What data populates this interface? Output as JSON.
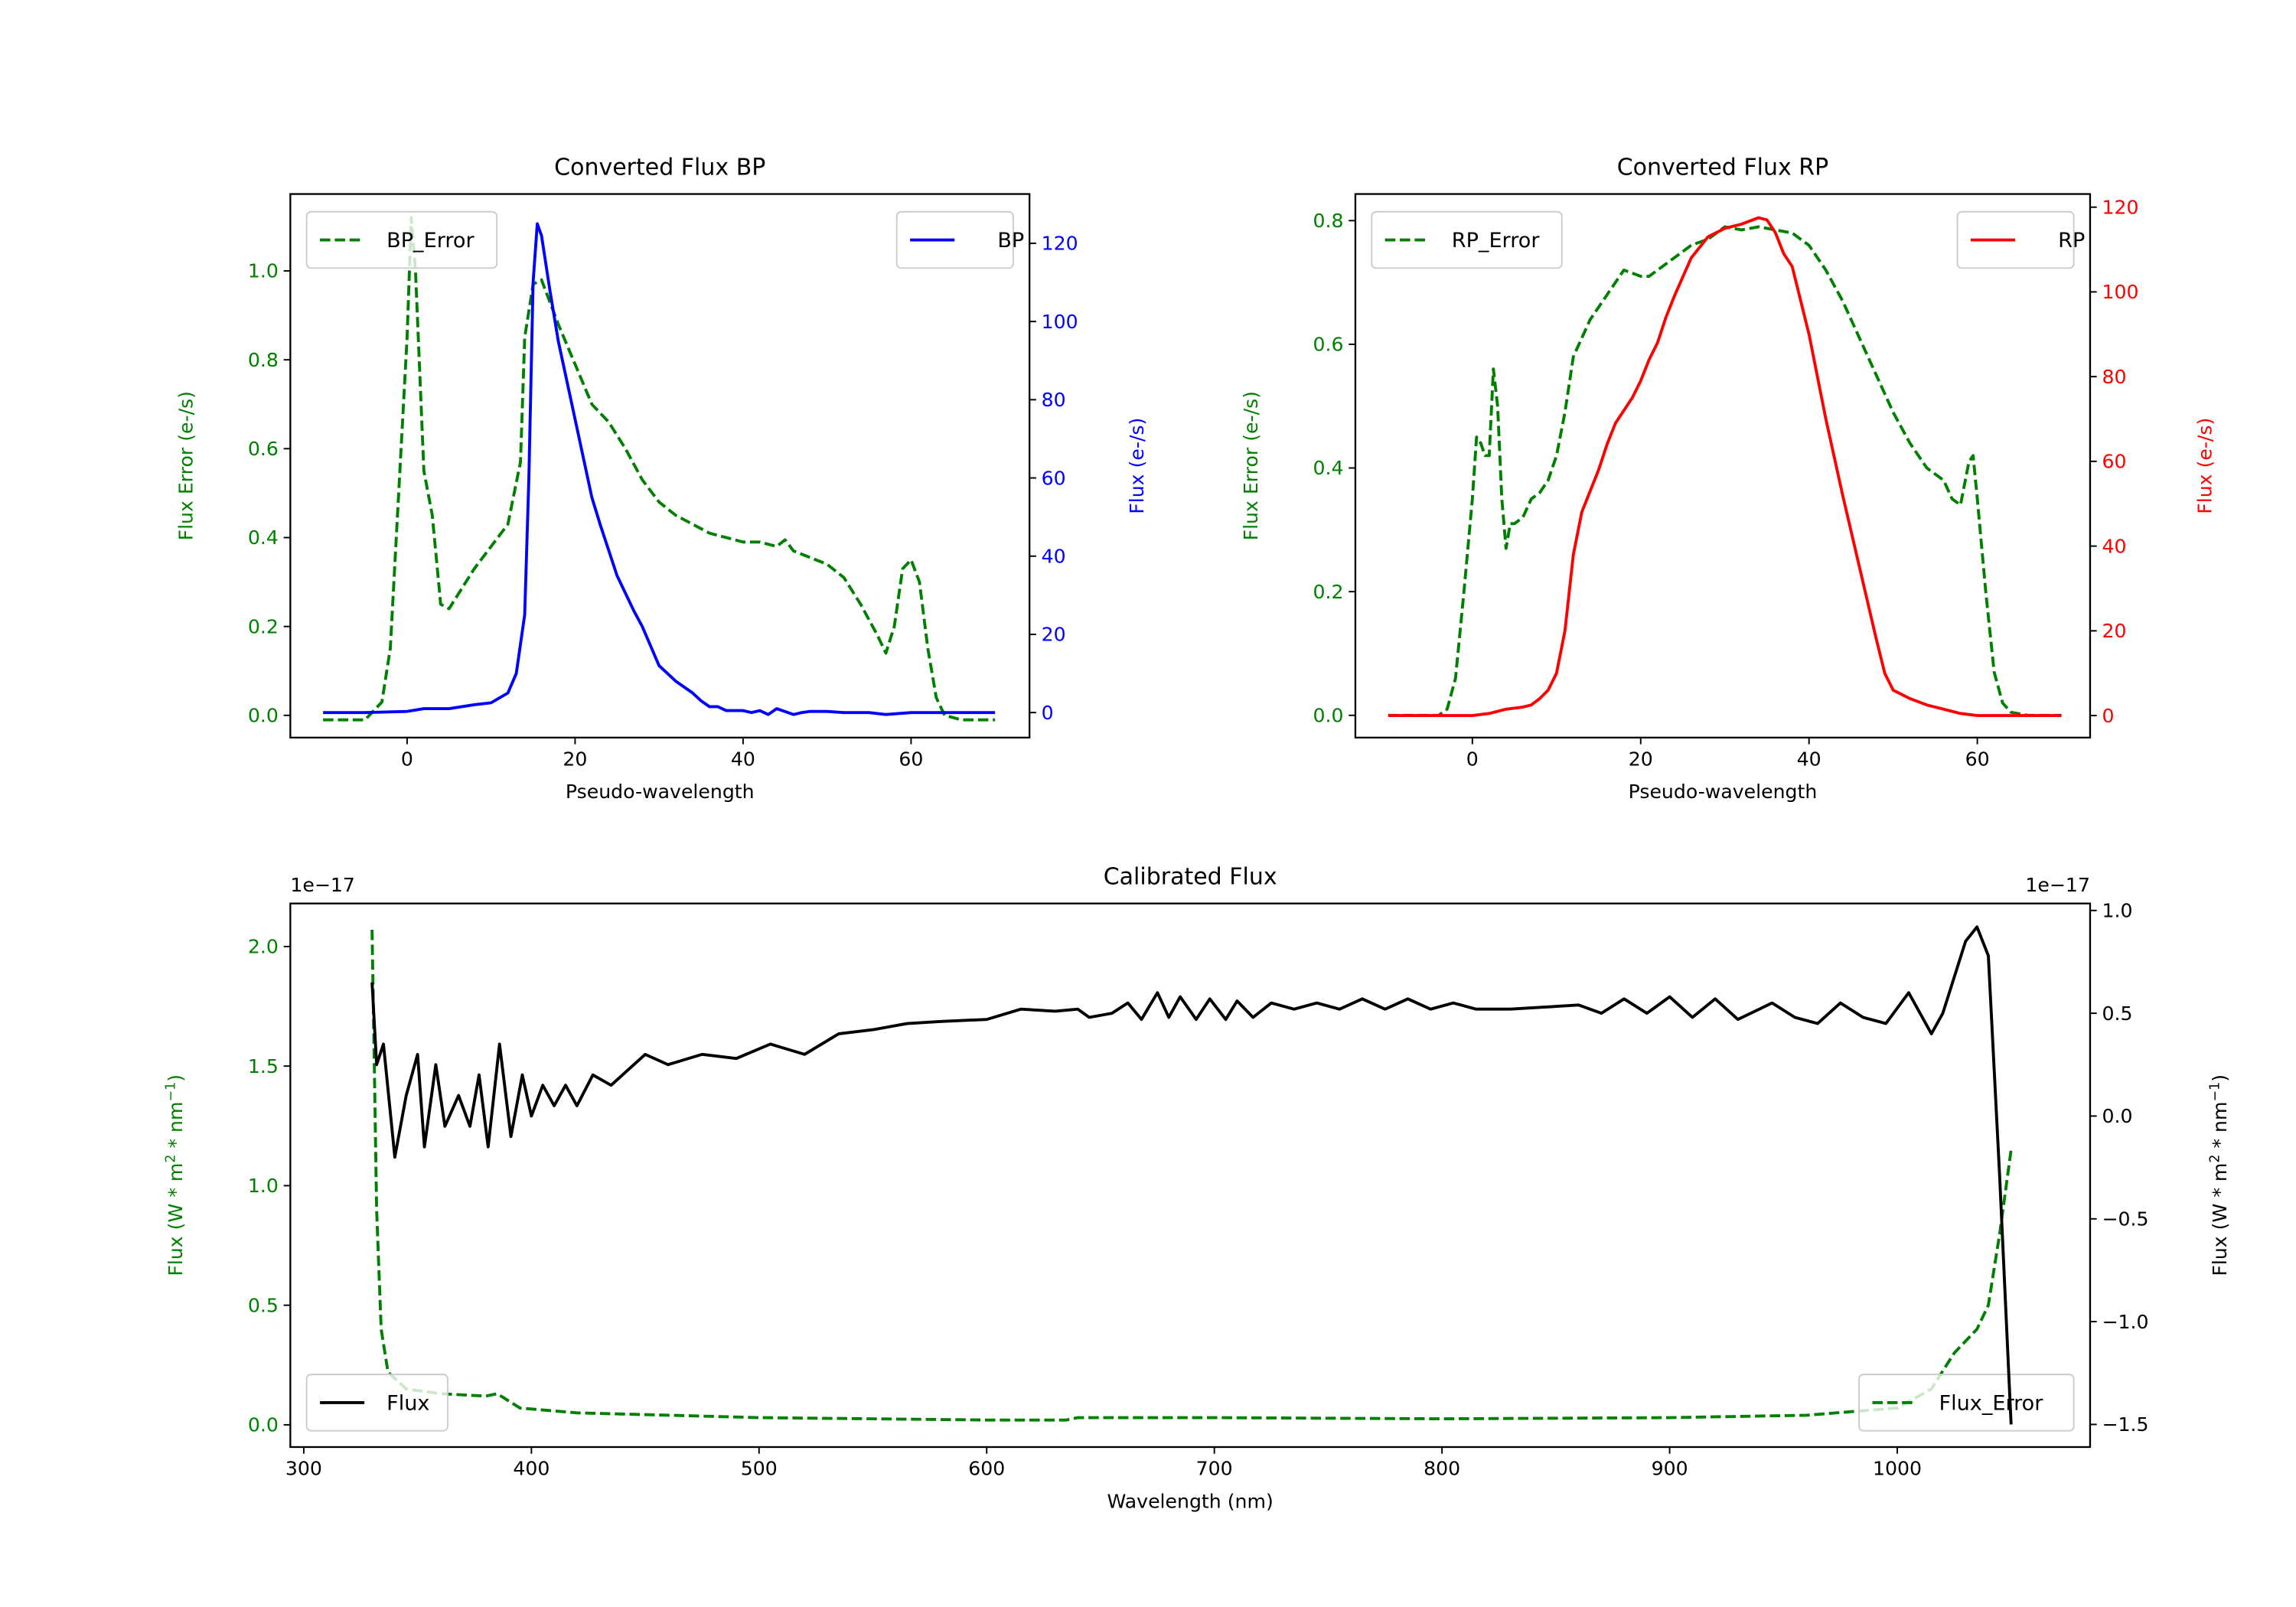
{
  "chart_data": [
    {
      "type": "line",
      "title": "Converted Flux BP",
      "xlabel": "Pseudo-wavelength",
      "ylabel_left": [
        "Flux Error (e-/s)"
      ],
      "ylabel_right": [
        "Flux (e-/s)"
      ],
      "left_color": "#008000",
      "right_color": "#0000ff",
      "xlim": [
        -13.9,
        74.1
      ],
      "ylim_left": [
        -0.05,
        1.173
      ],
      "ylim_right": [
        -6.4,
        132.6
      ],
      "xticks": [
        {
          "v": 0,
          "label": "0"
        },
        {
          "v": 20,
          "label": "20"
        },
        {
          "v": 40,
          "label": "40"
        },
        {
          "v": 60,
          "label": "60"
        }
      ],
      "yticks_left": [
        {
          "v": 0,
          "label": "0.0"
        },
        {
          "v": 0.2,
          "label": "0.2"
        },
        {
          "v": 0.4,
          "label": "0.4"
        },
        {
          "v": 0.6,
          "label": "0.6"
        },
        {
          "v": 0.8,
          "label": "0.8"
        },
        {
          "v": 1.0,
          "label": "1.0"
        }
      ],
      "yticks_right": [
        {
          "v": 0,
          "label": "0"
        },
        {
          "v": 20,
          "label": "20"
        },
        {
          "v": 40,
          "label": "40"
        },
        {
          "v": 60,
          "label": "60"
        },
        {
          "v": 80,
          "label": "80"
        },
        {
          "v": 100,
          "label": "100"
        },
        {
          "v": 120,
          "label": "120"
        }
      ],
      "series_left": {
        "name": "BP_Error",
        "color": "#008000",
        "dashed": true,
        "legend": "upper-left",
        "x": [
          -10,
          -5,
          -3,
          -2,
          -1,
          0,
          0.5,
          1,
          2,
          3,
          4,
          5,
          6,
          8,
          10,
          12,
          13.5,
          14,
          15,
          16,
          17,
          18,
          20,
          22,
          24,
          26,
          28,
          30,
          32,
          34,
          36,
          38,
          40,
          42,
          44,
          45,
          46,
          48,
          50,
          52,
          54,
          56,
          57,
          58,
          59,
          60,
          61,
          62,
          63,
          64,
          66,
          70
        ],
        "y": [
          -0.01,
          -0.01,
          0.03,
          0.15,
          0.5,
          0.85,
          1.12,
          1.0,
          0.55,
          0.45,
          0.25,
          0.24,
          0.27,
          0.33,
          0.38,
          0.43,
          0.57,
          0.85,
          0.97,
          0.98,
          0.93,
          0.88,
          0.79,
          0.7,
          0.66,
          0.6,
          0.53,
          0.48,
          0.45,
          0.43,
          0.41,
          0.4,
          0.39,
          0.39,
          0.38,
          0.395,
          0.37,
          0.355,
          0.34,
          0.31,
          0.25,
          0.18,
          0.14,
          0.2,
          0.33,
          0.35,
          0.3,
          0.15,
          0.04,
          0,
          -0.01,
          -0.01
        ]
      },
      "series_right": {
        "name": "BP",
        "color": "#0000ff",
        "dashed": false,
        "legend": "upper-right",
        "x": [
          -10,
          -5,
          0,
          2,
          5,
          8,
          10,
          12,
          13,
          14,
          14.5,
          15,
          15.5,
          16,
          17,
          18,
          20,
          22,
          23,
          25,
          27,
          28,
          29,
          30,
          32,
          34,
          35,
          36,
          37,
          38,
          40,
          41,
          42,
          43,
          44,
          46,
          47,
          48,
          50,
          52,
          55,
          57,
          60,
          65,
          70
        ],
        "y": [
          0,
          0,
          0.3,
          1,
          1,
          2,
          2.5,
          5,
          10,
          25,
          60,
          110,
          125,
          122,
          108,
          95,
          75,
          55,
          48,
          35,
          26,
          22,
          17,
          12,
          8,
          5,
          3,
          1.5,
          1.5,
          0.5,
          0.5,
          0,
          0.5,
          -0.5,
          1,
          -0.5,
          0,
          0.3,
          0.3,
          0,
          0,
          -0.5,
          0,
          0,
          0
        ]
      }
    },
    {
      "type": "line",
      "title": "Converted Flux RP",
      "xlabel": "Pseudo-wavelength",
      "ylabel_left": [
        "Flux Error (e-/s)"
      ],
      "ylabel_right": [
        "Flux (e-/s)"
      ],
      "left_color": "#008000",
      "right_color": "#ff0000",
      "xlim": [
        -13.9,
        73.4
      ],
      "ylim_left": [
        -0.036,
        0.843
      ],
      "ylim_right": [
        -5.2,
        123.1
      ],
      "xticks": [
        {
          "v": 0,
          "label": "0"
        },
        {
          "v": 20,
          "label": "20"
        },
        {
          "v": 40,
          "label": "40"
        },
        {
          "v": 60,
          "label": "60"
        }
      ],
      "yticks_left": [
        {
          "v": 0,
          "label": "0.0"
        },
        {
          "v": 0.2,
          "label": "0.2"
        },
        {
          "v": 0.4,
          "label": "0.4"
        },
        {
          "v": 0.6,
          "label": "0.6"
        },
        {
          "v": 0.8,
          "label": "0.8"
        }
      ],
      "yticks_right": [
        {
          "v": 0,
          "label": "0"
        },
        {
          "v": 20,
          "label": "20"
        },
        {
          "v": 40,
          "label": "40"
        },
        {
          "v": 60,
          "label": "60"
        },
        {
          "v": 80,
          "label": "80"
        },
        {
          "v": 100,
          "label": "100"
        },
        {
          "v": 120,
          "label": "120"
        }
      ],
      "series_left": {
        "name": "RP_Error",
        "color": "#008000",
        "dashed": true,
        "legend": "upper-left",
        "x": [
          -10,
          -4,
          -3,
          -2,
          -1,
          0,
          0.5,
          1,
          1.5,
          2,
          2.5,
          3,
          3.5,
          4,
          4.5,
          5,
          6,
          7,
          8,
          9,
          10,
          11,
          12,
          13,
          14,
          15,
          16,
          17,
          18,
          20,
          21,
          22,
          24,
          26,
          28,
          30,
          32,
          34,
          36,
          38,
          40,
          42,
          44,
          46,
          48,
          50,
          52,
          54,
          56,
          57,
          58,
          59,
          59.5,
          60,
          61,
          62,
          63,
          64,
          66,
          70
        ],
        "y": [
          0,
          0,
          0.01,
          0.06,
          0.2,
          0.35,
          0.45,
          0.44,
          0.42,
          0.42,
          0.56,
          0.5,
          0.35,
          0.27,
          0.31,
          0.31,
          0.32,
          0.35,
          0.36,
          0.38,
          0.42,
          0.49,
          0.58,
          0.61,
          0.64,
          0.66,
          0.68,
          0.7,
          0.72,
          0.71,
          0.71,
          0.72,
          0.74,
          0.76,
          0.77,
          0.79,
          0.785,
          0.79,
          0.785,
          0.78,
          0.76,
          0.72,
          0.67,
          0.61,
          0.55,
          0.49,
          0.44,
          0.4,
          0.38,
          0.35,
          0.34,
          0.41,
          0.42,
          0.35,
          0.2,
          0.07,
          0.02,
          0.005,
          0,
          0
        ]
      },
      "series_right": {
        "name": "RP",
        "color": "#ff0000",
        "dashed": false,
        "legend": "upper-right",
        "x": [
          -10,
          -2,
          0,
          2,
          4,
          6,
          7,
          8,
          9,
          10,
          11,
          12,
          13,
          14,
          15,
          16,
          17,
          18,
          19,
          20,
          21,
          22,
          23,
          24,
          26,
          28,
          30,
          32,
          34,
          35,
          36,
          37,
          38,
          39,
          40,
          42,
          44,
          46,
          48,
          49,
          50,
          52,
          54,
          56,
          58,
          60,
          70
        ],
        "y": [
          0,
          0,
          0,
          0.5,
          1.5,
          2,
          2.5,
          4,
          6,
          10,
          20,
          38,
          48,
          53,
          58,
          64,
          69,
          72,
          75,
          79,
          84,
          88,
          94,
          99,
          108,
          113,
          115,
          116,
          117.5,
          117,
          114,
          109,
          106,
          98,
          90,
          70,
          52,
          35,
          18,
          10,
          6,
          4,
          2.5,
          1.5,
          0.5,
          0,
          0
        ]
      }
    },
    {
      "type": "line",
      "title": "Calibrated Flux",
      "xlabel": "Wavelength (nm)",
      "ylabel_left": [
        "Flux (W * m",
        "2",
        " * nm",
        "−1",
        ")"
      ],
      "ylabel_right": [
        "Flux (W * m",
        "2",
        " * nm",
        "−1",
        ")"
      ],
      "left_color": "#008000",
      "right_color": "#000000",
      "offset_left": "1e−17",
      "offset_right": "1e−17",
      "xlim": [
        294.1,
        1084.7
      ],
      "ylim_left": [
        -0.093,
        2.18
      ],
      "ylim_right": [
        -1.61,
        1.034
      ],
      "xticks": [
        {
          "v": 300,
          "label": "300"
        },
        {
          "v": 400,
          "label": "400"
        },
        {
          "v": 500,
          "label": "500"
        },
        {
          "v": 600,
          "label": "600"
        },
        {
          "v": 700,
          "label": "700"
        },
        {
          "v": 800,
          "label": "800"
        },
        {
          "v": 900,
          "label": "900"
        },
        {
          "v": 1000,
          "label": "1000"
        }
      ],
      "yticks_left": [
        {
          "v": 0,
          "label": "0.0"
        },
        {
          "v": 0.5,
          "label": "0.5"
        },
        {
          "v": 1.0,
          "label": "1.0"
        },
        {
          "v": 1.5,
          "label": "1.5"
        },
        {
          "v": 2.0,
          "label": "2.0"
        }
      ],
      "yticks_right": [
        {
          "v": -1.5,
          "label": "−1.5"
        },
        {
          "v": -1.0,
          "label": "−1.0"
        },
        {
          "v": -0.5,
          "label": "−0.5"
        },
        {
          "v": 0,
          "label": "0.0"
        },
        {
          "v": 0.5,
          "label": "0.5"
        },
        {
          "v": 1.0,
          "label": "1.0"
        }
      ],
      "series_left": {
        "name": "Flux_Error",
        "color": "#008000",
        "dashed": true,
        "legend": "lower-right",
        "x": [
          330,
          331,
          332,
          334,
          337,
          345,
          360,
          380,
          385,
          395,
          420,
          500,
          600,
          635,
          640,
          700,
          800,
          900,
          960,
          1000,
          1015,
          1025,
          1035,
          1040,
          1045,
          1050
        ],
        "y": [
          2.07,
          1.5,
          0.9,
          0.4,
          0.22,
          0.15,
          0.13,
          0.12,
          0.13,
          0.07,
          0.05,
          0.03,
          0.02,
          0.02,
          0.03,
          0.03,
          0.025,
          0.03,
          0.04,
          0.07,
          0.15,
          0.3,
          0.4,
          0.5,
          0.8,
          1.15
        ]
      },
      "series_right": {
        "name": "Flux",
        "color": "#000000",
        "dashed": false,
        "legend": "lower-left",
        "x": [
          330,
          332,
          335,
          340,
          345,
          350,
          353,
          358,
          362,
          368,
          373,
          377,
          381,
          386,
          391,
          396,
          400,
          405,
          410,
          415,
          420,
          427,
          435,
          450,
          460,
          475,
          490,
          505,
          520,
          535,
          550,
          565,
          580,
          600,
          615,
          630,
          640,
          645,
          655,
          662,
          668,
          675,
          680,
          685,
          692,
          698,
          705,
          710,
          717,
          725,
          735,
          745,
          755,
          765,
          775,
          785,
          795,
          805,
          815,
          830,
          845,
          860,
          870,
          880,
          890,
          900,
          910,
          920,
          930,
          945,
          955,
          965,
          975,
          985,
          995,
          1005,
          1015,
          1020,
          1030,
          1035,
          1040,
          1045,
          1050
        ],
        "y": [
          0.65,
          0.25,
          0.35,
          -0.2,
          0.1,
          0.3,
          -0.15,
          0.25,
          -0.05,
          0.1,
          -0.05,
          0.2,
          -0.15,
          0.35,
          -0.1,
          0.2,
          0,
          0.15,
          0.05,
          0.15,
          0.05,
          0.2,
          0.15,
          0.3,
          0.25,
          0.3,
          0.28,
          0.35,
          0.3,
          0.4,
          0.42,
          0.45,
          0.46,
          0.47,
          0.52,
          0.51,
          0.52,
          0.48,
          0.5,
          0.55,
          0.47,
          0.6,
          0.48,
          0.58,
          0.47,
          0.57,
          0.47,
          0.56,
          0.48,
          0.55,
          0.52,
          0.55,
          0.52,
          0.57,
          0.52,
          0.57,
          0.52,
          0.55,
          0.52,
          0.52,
          0.53,
          0.54,
          0.5,
          0.57,
          0.5,
          0.58,
          0.48,
          0.57,
          0.47,
          0.55,
          0.48,
          0.45,
          0.55,
          0.48,
          0.45,
          0.6,
          0.4,
          0.5,
          0.85,
          0.92,
          0.78,
          -0.3,
          -1.5
        ]
      }
    }
  ]
}
